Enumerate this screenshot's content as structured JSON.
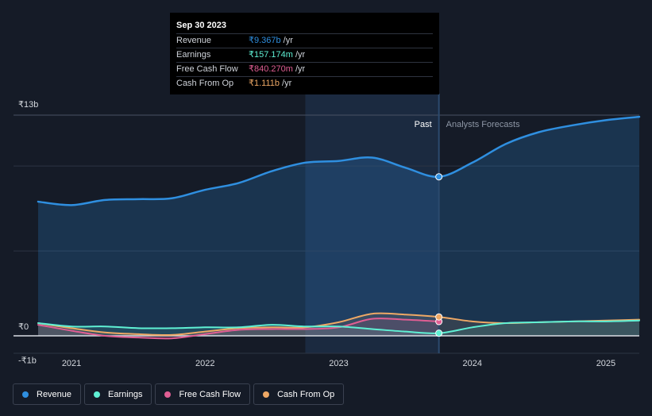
{
  "tooltip": {
    "date": "Sep 30 2023",
    "rows": [
      {
        "label": "Revenue",
        "value": "₹9.367b",
        "unit": "/yr",
        "color": "#2f8fe0"
      },
      {
        "label": "Earnings",
        "value": "₹157.174m",
        "unit": "/yr",
        "color": "#5ff0d4"
      },
      {
        "label": "Free Cash Flow",
        "value": "₹840.270m",
        "unit": "/yr",
        "color": "#e05e93"
      },
      {
        "label": "Cash From Op",
        "value": "₹1.111b",
        "unit": "/yr",
        "color": "#eea865"
      }
    ]
  },
  "legend": [
    {
      "label": "Revenue",
      "color": "#2f8fe0"
    },
    {
      "label": "Earnings",
      "color": "#5ff0d4"
    },
    {
      "label": "Free Cash Flow",
      "color": "#e05e93"
    },
    {
      "label": "Cash From Op",
      "color": "#eea865"
    }
  ],
  "chart_data": {
    "type": "line",
    "title": "",
    "units": "₹ billions",
    "y_tick_labels": [
      "₹13b",
      "₹0",
      "-₹1b"
    ],
    "ylim": [
      -1,
      13
    ],
    "x_tick_labels": [
      "2021",
      "2022",
      "2023",
      "2024",
      "2025"
    ],
    "xlim": [
      2020.75,
      2025.25
    ],
    "past_label": "Past",
    "forecast_label": "Analysts Forecasts",
    "past_start": 2022.75,
    "divider": 2023.75,
    "series": [
      {
        "name": "Revenue",
        "color": "#2f8fe0",
        "points": [
          [
            2020.75,
            7.9
          ],
          [
            2021.0,
            7.7
          ],
          [
            2021.25,
            8.0
          ],
          [
            2021.5,
            8.05
          ],
          [
            2021.75,
            8.1
          ],
          [
            2022.0,
            8.6
          ],
          [
            2022.25,
            9.0
          ],
          [
            2022.5,
            9.7
          ],
          [
            2022.75,
            10.2
          ],
          [
            2023.0,
            10.3
          ],
          [
            2023.25,
            10.5
          ],
          [
            2023.5,
            9.9
          ],
          [
            2023.75,
            9.367
          ],
          [
            2024.0,
            10.2
          ],
          [
            2024.25,
            11.3
          ],
          [
            2024.5,
            12.0
          ],
          [
            2024.75,
            12.4
          ],
          [
            2025.0,
            12.7
          ],
          [
            2025.25,
            12.9
          ]
        ]
      },
      {
        "name": "Earnings",
        "color": "#5ff0d4",
        "points": [
          [
            2020.75,
            0.75
          ],
          [
            2021.0,
            0.55
          ],
          [
            2021.25,
            0.55
          ],
          [
            2021.5,
            0.45
          ],
          [
            2021.75,
            0.45
          ],
          [
            2022.0,
            0.5
          ],
          [
            2022.25,
            0.5
          ],
          [
            2022.5,
            0.65
          ],
          [
            2022.75,
            0.55
          ],
          [
            2023.0,
            0.55
          ],
          [
            2023.25,
            0.4
          ],
          [
            2023.5,
            0.25
          ],
          [
            2023.75,
            0.157
          ],
          [
            2024.0,
            0.5
          ],
          [
            2024.25,
            0.75
          ],
          [
            2024.5,
            0.8
          ],
          [
            2024.75,
            0.85
          ],
          [
            2025.0,
            0.85
          ],
          [
            2025.25,
            0.9
          ]
        ]
      },
      {
        "name": "Free Cash Flow",
        "color": "#e05e93",
        "points": [
          [
            2020.75,
            0.65
          ],
          [
            2021.0,
            0.3
          ],
          [
            2021.25,
            0.0
          ],
          [
            2021.5,
            -0.1
          ],
          [
            2021.75,
            -0.15
          ],
          [
            2022.0,
            0.1
          ],
          [
            2022.25,
            0.35
          ],
          [
            2022.5,
            0.4
          ],
          [
            2022.75,
            0.4
          ],
          [
            2023.0,
            0.5
          ],
          [
            2023.25,
            1.0
          ],
          [
            2023.5,
            0.95
          ],
          [
            2023.75,
            0.84
          ]
        ]
      },
      {
        "name": "Cash From Op",
        "color": "#eea865",
        "points": [
          [
            2020.75,
            0.75
          ],
          [
            2021.0,
            0.45
          ],
          [
            2021.25,
            0.2
          ],
          [
            2021.5,
            0.1
          ],
          [
            2021.75,
            0.05
          ],
          [
            2022.0,
            0.25
          ],
          [
            2022.25,
            0.45
          ],
          [
            2022.5,
            0.5
          ],
          [
            2022.75,
            0.5
          ],
          [
            2023.0,
            0.8
          ],
          [
            2023.25,
            1.3
          ],
          [
            2023.5,
            1.25
          ],
          [
            2023.75,
            1.111
          ],
          [
            2024.0,
            0.85
          ],
          [
            2024.25,
            0.75
          ],
          [
            2024.5,
            0.8
          ],
          [
            2024.75,
            0.85
          ],
          [
            2025.0,
            0.9
          ],
          [
            2025.25,
            0.95
          ]
        ]
      }
    ]
  }
}
